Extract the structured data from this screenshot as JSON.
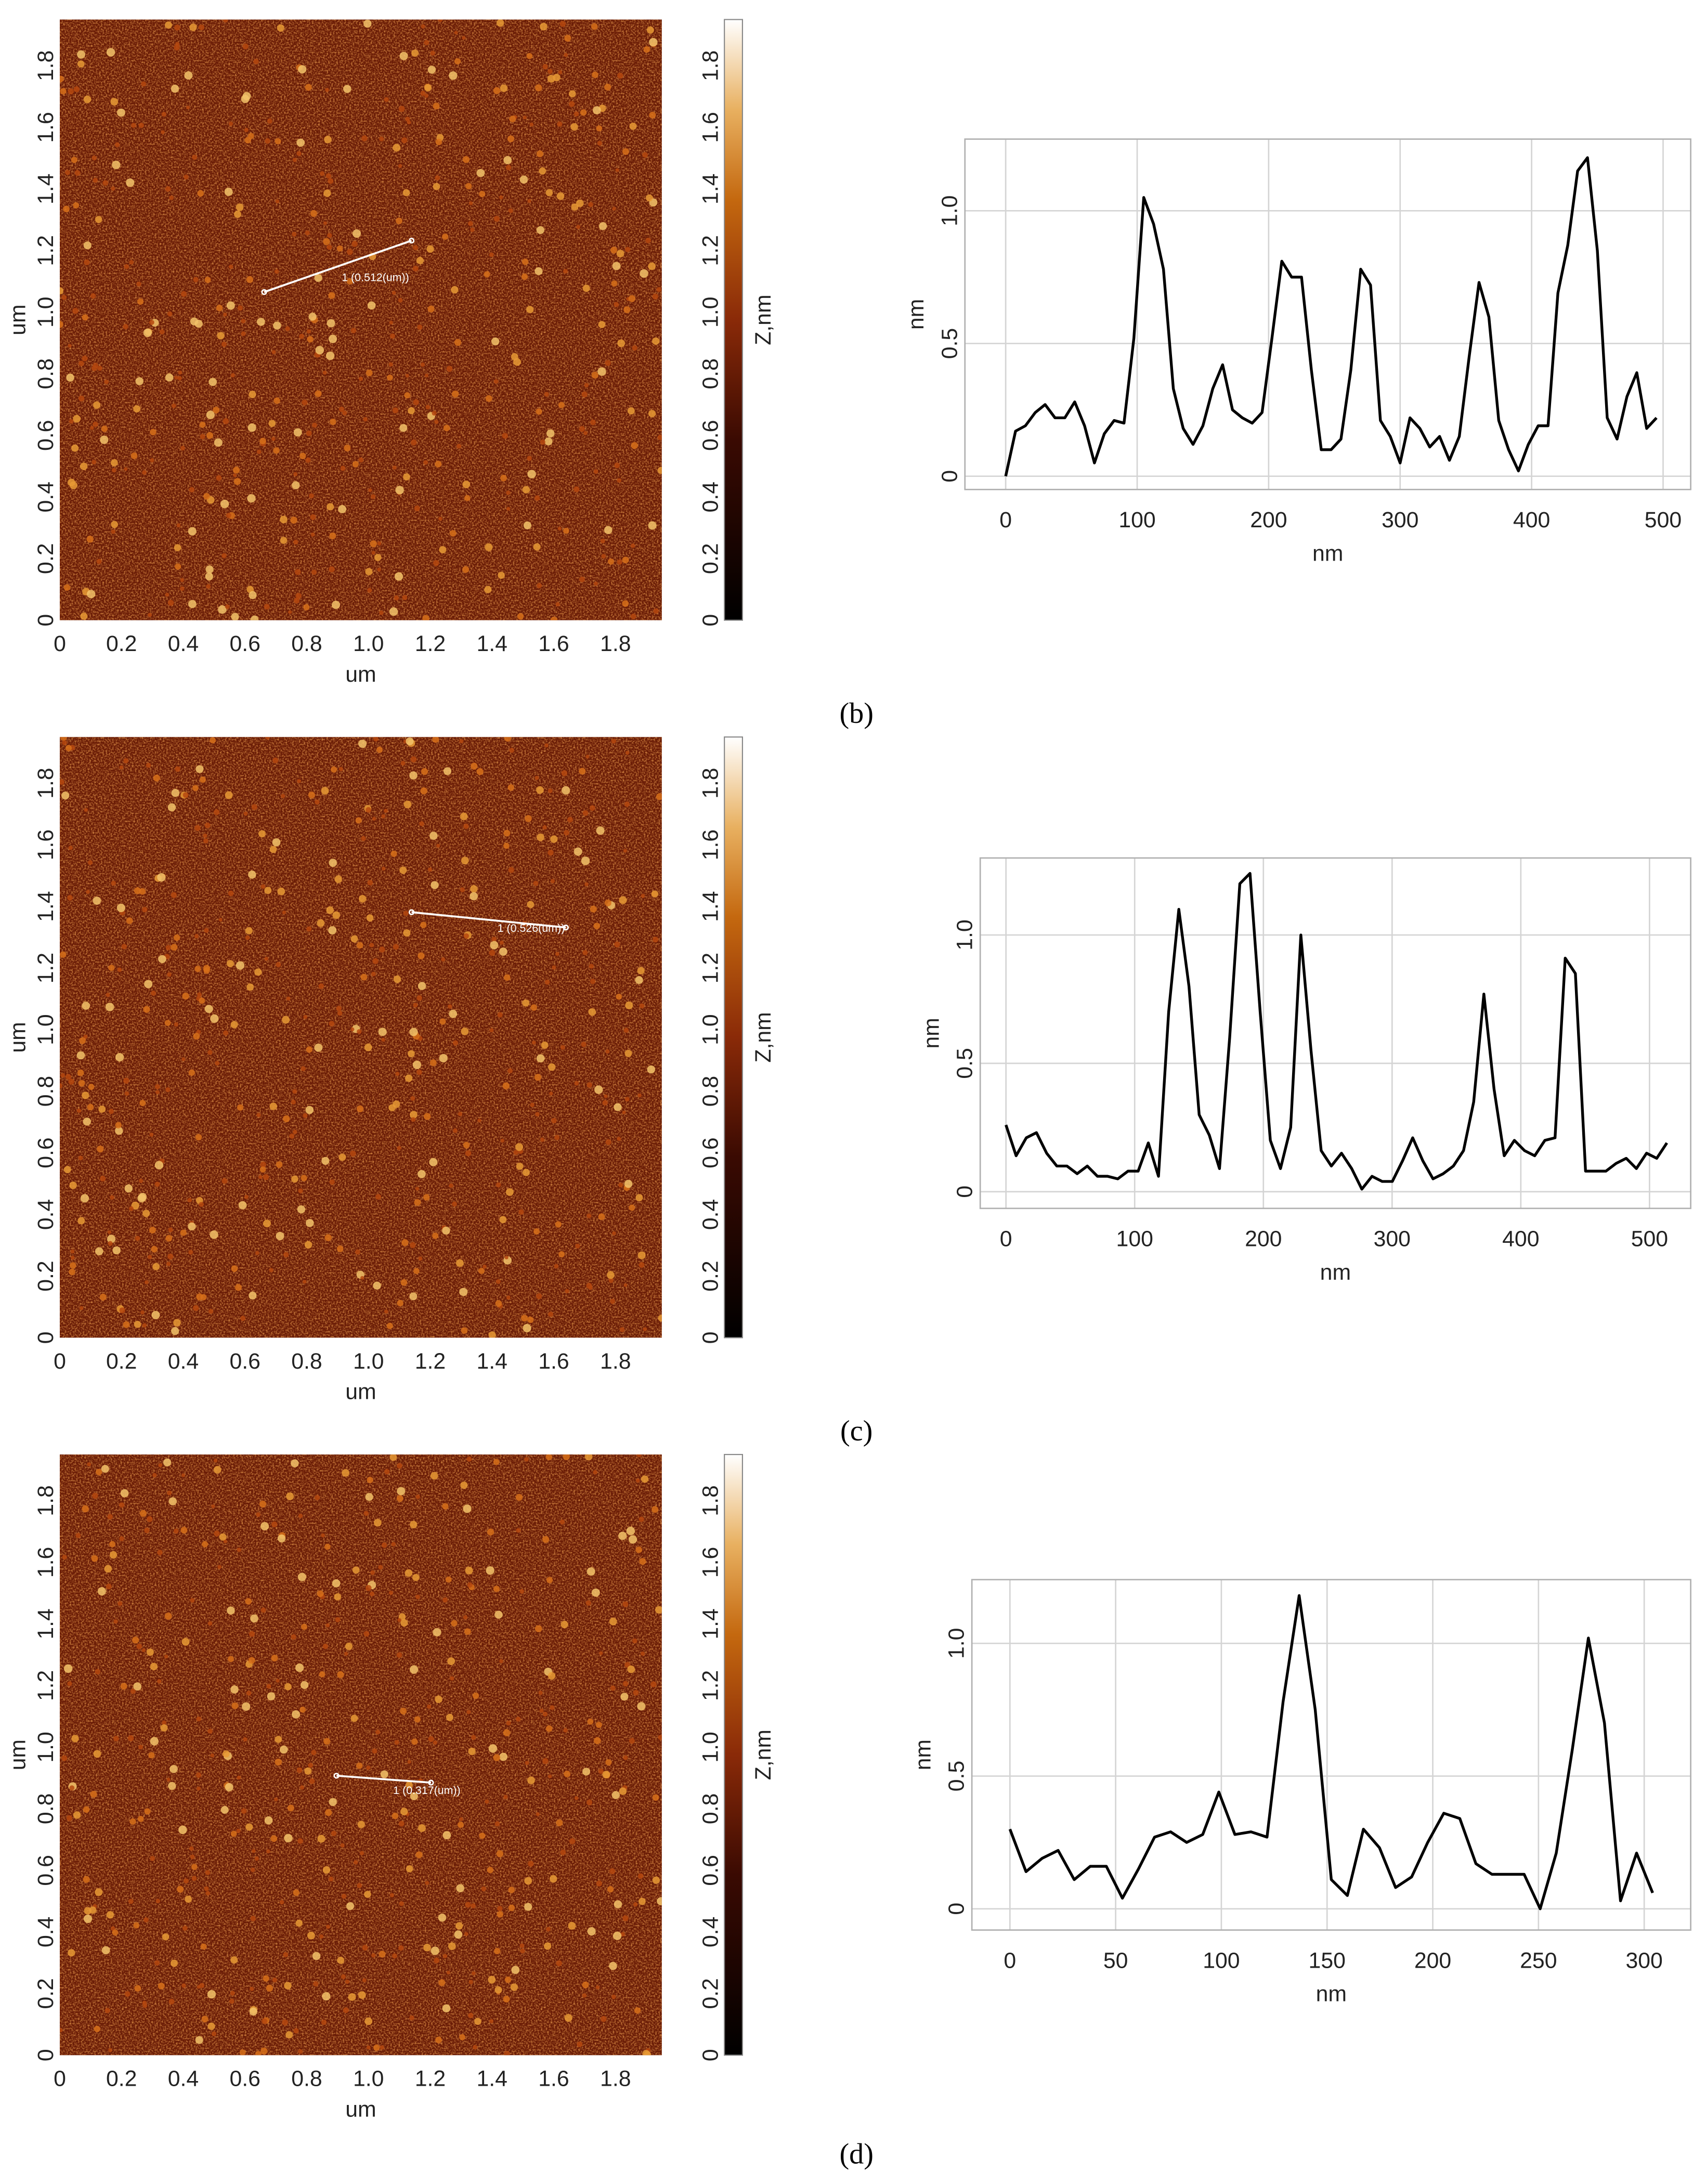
{
  "panel_labels": [
    "(b)",
    "(c)",
    "(d)"
  ],
  "chart_data": [
    {
      "type": "heatmap",
      "xlabel": "um",
      "ylabel": "um",
      "xlim": [
        0,
        1.95
      ],
      "ylim": [
        0,
        1.95
      ],
      "xticks": [
        0,
        0.2,
        0.4,
        0.6,
        0.8,
        {
          "value": 1,
          "label": "1.0"
        },
        1.2,
        1.4,
        1.6,
        1.8
      ],
      "yticks": [
        0,
        0.2,
        0.4,
        0.6,
        0.8,
        {
          "value": 1,
          "label": "1.0"
        },
        1.2,
        1.4,
        1.6,
        1.8
      ],
      "colorbar": {
        "label": "Z,nm",
        "lim": [
          0,
          1.95
        ],
        "ticks": [
          0,
          0.2,
          0.4,
          0.6,
          0.8,
          {
            "value": 1,
            "label": "1.0"
          },
          1.2,
          1.4,
          1.6,
          1.8
        ]
      },
      "annotation": "1 (0.512(um))"
    },
    {
      "type": "line",
      "xlabel": "nm",
      "ylabel": "nm",
      "xlim": [
        -31,
        521
      ],
      "ylim": [
        -0.05,
        1.27
      ],
      "xticks": [
        0,
        100,
        200,
        300,
        400,
        500
      ],
      "yticks": [
        0,
        0.5,
        {
          "value": 1,
          "label": "1.0"
        }
      ],
      "grid": true,
      "color": "#000000",
      "x": [
        0,
        7.5,
        15,
        22.5,
        30,
        37.5,
        45,
        52.5,
        60,
        67.5,
        75,
        82.5,
        90,
        97.5,
        105,
        112.5,
        120,
        127.5,
        135,
        142.5,
        150,
        157.5,
        165,
        172.5,
        180,
        187.5,
        195,
        202.5,
        210,
        217.5,
        225,
        232.5,
        240,
        247.5,
        255,
        262.5,
        270,
        277.5,
        285,
        292.5,
        300,
        307.5,
        315,
        322.5,
        330,
        337.5,
        345,
        352.5,
        360,
        367.5,
        375,
        382.5,
        390,
        397.5,
        405,
        412.5,
        420,
        427.5,
        435,
        442.5,
        450,
        457.5,
        465,
        472.5,
        480,
        487.5,
        495
      ],
      "values": [
        0,
        0.17,
        0.19,
        0.24,
        0.27,
        0.22,
        0.22,
        0.28,
        0.19,
        0.05,
        0.16,
        0.21,
        0.2,
        0.52,
        1.05,
        0.95,
        0.78,
        0.33,
        0.18,
        0.12,
        0.19,
        0.33,
        0.42,
        0.25,
        0.22,
        0.2,
        0.24,
        0.52,
        0.81,
        0.75,
        0.75,
        0.4,
        0.1,
        0.1,
        0.14,
        0.4,
        0.78,
        0.72,
        0.21,
        0.15,
        0.05,
        0.22,
        0.18,
        0.11,
        0.15,
        0.06,
        0.15,
        0.45,
        0.73,
        0.6,
        0.21,
        0.1,
        0.02,
        0.12,
        0.19,
        0.19,
        0.69,
        0.87,
        1.15,
        1.2,
        0.85,
        0.22,
        0.14,
        0.3,
        0.39,
        0.18,
        0.22
      ]
    },
    {
      "type": "heatmap",
      "xlabel": "um",
      "ylabel": "um",
      "xlim": [
        0,
        1.95
      ],
      "ylim": [
        0,
        1.95
      ],
      "xticks": [
        0,
        0.2,
        0.4,
        0.6,
        0.8,
        {
          "value": 1,
          "label": "1.0"
        },
        1.2,
        1.4,
        1.6,
        1.8
      ],
      "yticks": [
        0,
        0.2,
        0.4,
        0.6,
        0.8,
        {
          "value": 1,
          "label": "1.0"
        },
        1.2,
        1.4,
        1.6,
        1.8
      ],
      "colorbar": {
        "label": "Z,nm",
        "lim": [
          0,
          1.95
        ],
        "ticks": [
          0,
          0.2,
          0.4,
          0.6,
          0.8,
          {
            "value": 1,
            "label": "1.0"
          },
          1.2,
          1.4,
          1.6,
          1.8
        ]
      },
      "annotation": "1 (0.526(um))"
    },
    {
      "type": "line",
      "xlabel": "nm",
      "ylabel": "nm",
      "xlim": [
        -20,
        532
      ],
      "ylim": [
        -0.065,
        1.3
      ],
      "xticks": [
        0,
        100,
        200,
        300,
        400,
        500
      ],
      "yticks": [
        0,
        0.5,
        {
          "value": 1,
          "label": "1.0"
        }
      ],
      "grid": true,
      "color": "#000000",
      "x": [
        0,
        7.9,
        15.8,
        23.7,
        31.6,
        39.5,
        47.4,
        55.3,
        63.2,
        71.1,
        79,
        86.9,
        94.8,
        102.7,
        110.6,
        118.5,
        126.4,
        134.3,
        142.2,
        150.1,
        158,
        165.9,
        173.8,
        181.7,
        189.6,
        197.5,
        205.4,
        213.3,
        221.2,
        229.1,
        237,
        244.9,
        252.8,
        260.7,
        268.6,
        276.5,
        284.4,
        292.3,
        300.2,
        308.1,
        316,
        323.9,
        331.8,
        339.7,
        347.6,
        355.5,
        363.4,
        371.3,
        379.2,
        387.1,
        395,
        402.9,
        410.8,
        418.7,
        426.6,
        434.5,
        442.4,
        450.3,
        458.2,
        466.1,
        474,
        481.9,
        489.8,
        497.7,
        505.6,
        513.5
      ],
      "values": [
        0.26,
        0.14,
        0.21,
        0.23,
        0.15,
        0.1,
        0.1,
        0.07,
        0.1,
        0.06,
        0.06,
        0.05,
        0.08,
        0.08,
        0.19,
        0.06,
        0.7,
        1.1,
        0.8,
        0.3,
        0.22,
        0.09,
        0.6,
        1.2,
        1.24,
        0.7,
        0.2,
        0.09,
        0.25,
        1.0,
        0.55,
        0.16,
        0.1,
        0.15,
        0.09,
        0.01,
        0.06,
        0.04,
        0.04,
        0.12,
        0.21,
        0.12,
        0.05,
        0.07,
        0.1,
        0.16,
        0.35,
        0.77,
        0.4,
        0.14,
        0.2,
        0.16,
        0.14,
        0.2,
        0.21,
        0.91,
        0.85,
        0.08,
        0.08,
        0.08,
        0.11,
        0.13,
        0.09,
        0.15,
        0.13,
        0.19
      ]
    },
    {
      "type": "heatmap",
      "xlabel": "um",
      "ylabel": "um",
      "xlim": [
        0,
        1.95
      ],
      "ylim": [
        0,
        1.95
      ],
      "xticks": [
        0,
        0.2,
        0.4,
        0.6,
        0.8,
        {
          "value": 1,
          "label": "1.0"
        },
        1.2,
        1.4,
        1.6,
        1.8
      ],
      "yticks": [
        0,
        0.2,
        0.4,
        0.6,
        0.8,
        {
          "value": 1,
          "label": "1.0"
        },
        1.2,
        1.4,
        1.6,
        1.8
      ],
      "colorbar": {
        "label": "Z,nm",
        "lim": [
          0,
          1.95
        ],
        "ticks": [
          0,
          0.2,
          0.4,
          0.6,
          0.8,
          {
            "value": 1,
            "label": "1.0"
          },
          1.2,
          1.4,
          1.6,
          1.8
        ]
      },
      "annotation": "1 (0.317(um))"
    },
    {
      "type": "line",
      "xlabel": "nm",
      "ylabel": "nm",
      "xlim": [
        -18,
        322
      ],
      "ylim": [
        -0.08,
        1.24
      ],
      "xticks": [
        0,
        50,
        100,
        150,
        200,
        250,
        300
      ],
      "yticks": [
        0,
        0.5,
        {
          "value": 1,
          "label": "1.0"
        }
      ],
      "grid": true,
      "color": "#000000",
      "x": [
        0,
        7.6,
        15.2,
        22.8,
        30.4,
        38,
        45.6,
        53.2,
        60.8,
        68.4,
        76,
        83.6,
        91.2,
        98.8,
        106.4,
        114,
        121.6,
        129.2,
        136.8,
        144.4,
        152,
        159.6,
        167.2,
        174.8,
        182.4,
        190,
        197.6,
        205.2,
        212.8,
        220.4,
        228,
        235.6,
        243.2,
        250.8,
        258.4,
        266,
        273.6,
        281.2,
        288.8,
        296.4,
        304
      ],
      "values": [
        0.3,
        0.14,
        0.19,
        0.22,
        0.11,
        0.16,
        0.16,
        0.04,
        0.15,
        0.27,
        0.29,
        0.25,
        0.28,
        0.44,
        0.28,
        0.29,
        0.27,
        0.78,
        1.18,
        0.75,
        0.11,
        0.05,
        0.3,
        0.23,
        0.08,
        0.12,
        0.25,
        0.36,
        0.34,
        0.17,
        0.13,
        0.13,
        0.13,
        0.0,
        0.21,
        0.6,
        1.02,
        0.7,
        0.03,
        0.21,
        0.06
      ]
    }
  ]
}
